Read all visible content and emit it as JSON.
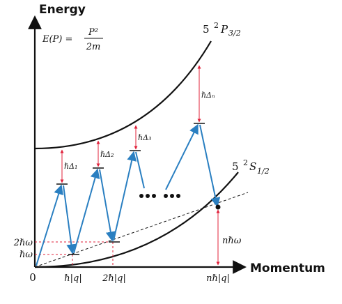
{
  "axes": {
    "y_title": "Energy",
    "x_title": "Momentum",
    "origin": "0"
  },
  "formula": {
    "lhs": "E(P) =",
    "numerator": "P²",
    "denominator": "2m"
  },
  "curves": {
    "upper": {
      "label_n": "5",
      "label_sup": "2",
      "label_p": "P",
      "label_sub": "3/2"
    },
    "lower": {
      "label_n": "5",
      "label_sup": "2",
      "label_p": "S",
      "label_sub": "1/2"
    }
  },
  "detunings": {
    "d1": "ℏΔ₁",
    "d2": "ℏΔ₂",
    "d3": "ℏΔ₃",
    "dn": "ℏΔₙ"
  },
  "y_ticks": {
    "two_hw": "2ℏω",
    "hw": "ℏω"
  },
  "x_ticks": {
    "hq": "ℏ|q|",
    "two_hq": "2ℏ|q|",
    "nhq": "nℏ|q|"
  },
  "energy_gap": "nℏω",
  "colors": {
    "axis": "#111111",
    "arrow_blue": "#2a7fc1",
    "detuning_red": "#e0203a",
    "dashed_red": "#e0203a"
  }
}
